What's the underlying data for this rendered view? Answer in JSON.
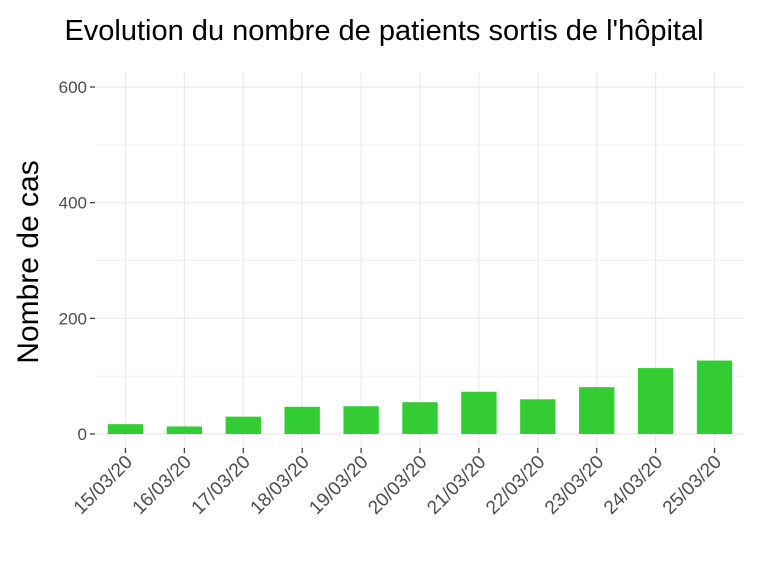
{
  "chart_data": {
    "type": "bar",
    "title": "Evolution du nombre de patients sortis de l'hôpital",
    "xlabel": "",
    "ylabel": "Nombre de cas",
    "categories": [
      "15/03/20",
      "16/03/20",
      "17/03/20",
      "18/03/20",
      "19/03/20",
      "20/03/20",
      "21/03/20",
      "22/03/20",
      "23/03/20",
      "24/03/20",
      "25/03/20"
    ],
    "values": [
      17,
      13,
      30,
      47,
      48,
      55,
      73,
      60,
      81,
      114,
      127
    ],
    "ylim": [
      0,
      600
    ],
    "yticks": [
      "0",
      "200",
      "400",
      "600"
    ],
    "grid": true,
    "bar_color": "#33cc33"
  }
}
